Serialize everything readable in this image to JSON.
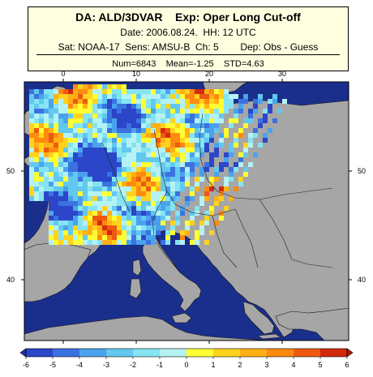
{
  "title": {
    "line1": "DA: ALD/3DVAR    Exp: Oper Long Cut-off",
    "line2": "Date: 2006.08.24.  HH: 12 UTC",
    "line3": "Sat: NOAA-17  Sens: AMSU-B  Ch: 5        Dep: Obs - Guess",
    "stats": "Num=6843    Mean=-1.25    STD=4.63"
  },
  "colors": {
    "sea": "#1a2f8c",
    "land": "#a6a6a6",
    "coast": "#111111"
  },
  "chart_data": {
    "type": "heatmap",
    "x_ticks": [
      "0",
      "10",
      "20",
      "30"
    ],
    "y_ticks": [
      "50",
      "40"
    ],
    "colorbar": {
      "levels": [
        "-6",
        "-5",
        "-4",
        "-3",
        "-2",
        "-1",
        "0",
        "1",
        "2",
        "3",
        "4",
        "5",
        "6"
      ],
      "colors": [
        "#2b46c8",
        "#3a72e0",
        "#4aa2ee",
        "#62c8f0",
        "#86e4f2",
        "#b4f2f4",
        "#ffff33",
        "#ffd21e",
        "#ffb014",
        "#ff8a10",
        "#ee5a10",
        "#d22a0e"
      ]
    }
  }
}
